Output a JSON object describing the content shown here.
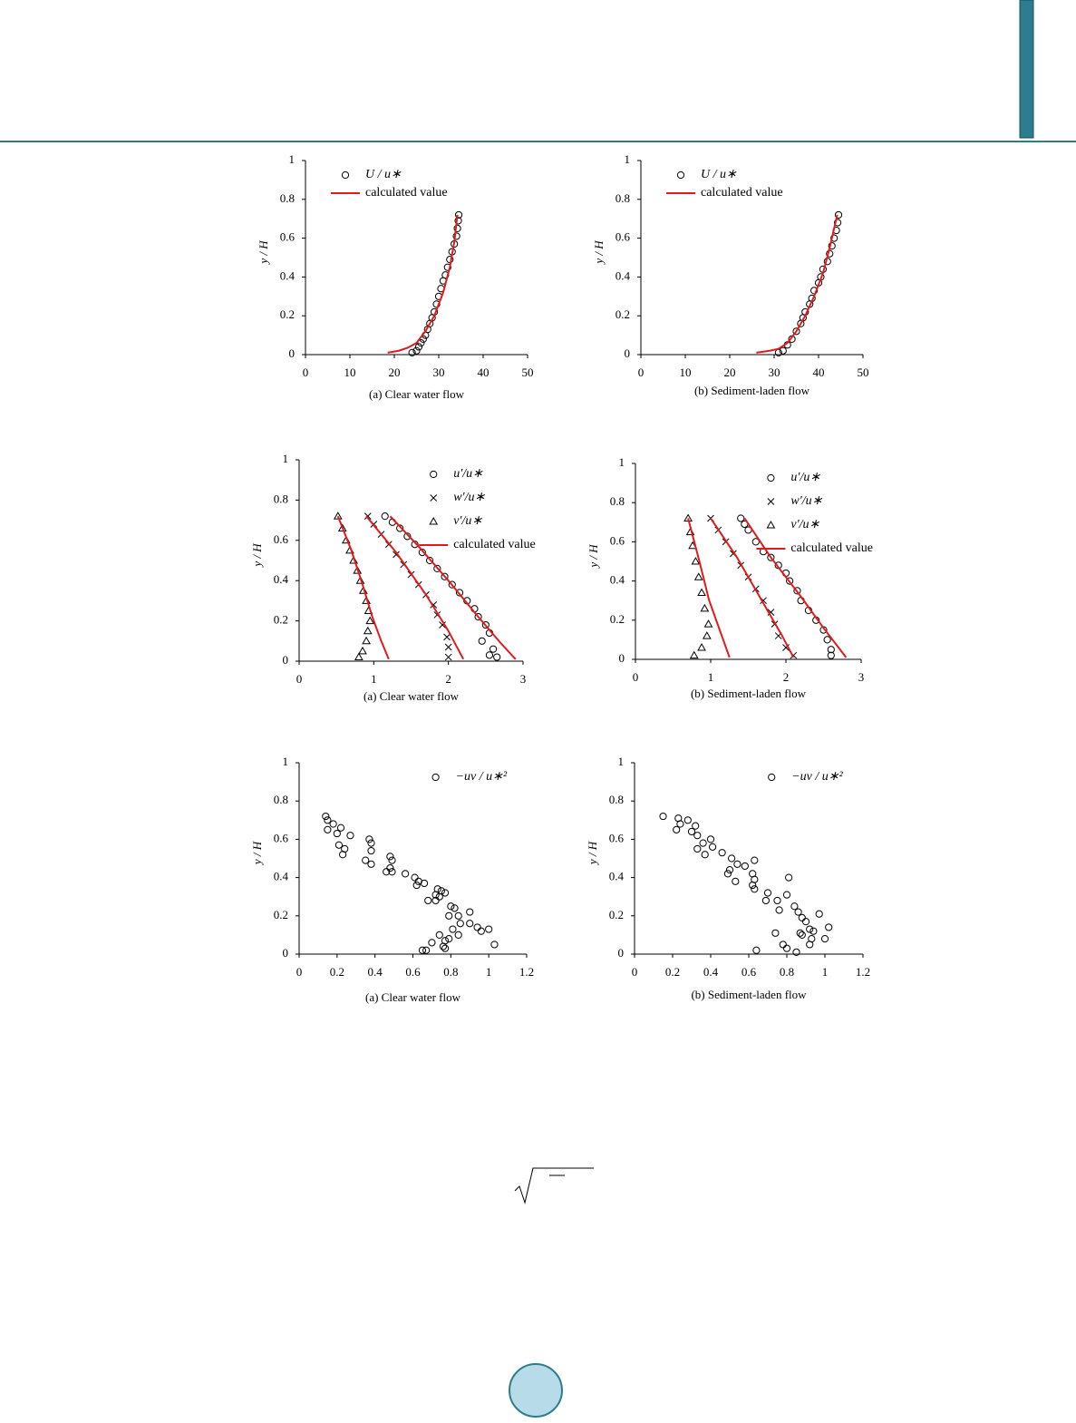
{
  "chart_data": [
    {
      "type": "scatter",
      "ylabel": "y / H",
      "caption": "(a) Clear water flow",
      "legend": "upper left",
      "xlim": [
        0,
        50
      ],
      "xticks": [
        0,
        10,
        20,
        30,
        40,
        50
      ],
      "ylim": [
        0,
        1
      ],
      "yticks": [
        0,
        0.2,
        0.4,
        0.6,
        0.8,
        1
      ],
      "series": [
        {
          "name": "U / u∗",
          "color": "#000000",
          "marker": "circle",
          "x": [
            24,
            25,
            25.5,
            26,
            26.5,
            27,
            27.5,
            28,
            28.5,
            29,
            29.5,
            30,
            30.5,
            31,
            31.5,
            32,
            32.5,
            33,
            33.5,
            34,
            34.2,
            34.4,
            34.5
          ],
          "values": [
            0.01,
            0.02,
            0.04,
            0.06,
            0.08,
            0.1,
            0.13,
            0.16,
            0.19,
            0.22,
            0.26,
            0.3,
            0.34,
            0.38,
            0.41,
            0.45,
            0.49,
            0.53,
            0.57,
            0.61,
            0.65,
            0.69,
            0.72
          ]
        },
        {
          "name": "calculated value",
          "color": "#e31a1c",
          "marker": "line",
          "x": [
            18.5,
            21,
            23,
            25,
            27,
            29,
            31,
            32.5,
            33.5,
            34.2
          ],
          "values": [
            0.01,
            0.02,
            0.035,
            0.06,
            0.12,
            0.2,
            0.32,
            0.45,
            0.58,
            0.72
          ]
        }
      ]
    },
    {
      "type": "scatter",
      "ylabel": "y / H",
      "caption": "(b) Sediment-laden flow",
      "legend": "upper left",
      "xlim": [
        0,
        50
      ],
      "xticks": [
        0,
        10,
        20,
        30,
        40,
        50
      ],
      "ylim": [
        0,
        1
      ],
      "yticks": [
        0,
        0.2,
        0.4,
        0.6,
        0.8,
        1
      ],
      "series": [
        {
          "name": "U / u∗",
          "color": "#000000",
          "marker": "circle",
          "x": [
            31,
            32,
            33,
            34,
            35,
            36,
            36.5,
            37,
            38,
            38.5,
            39,
            40,
            40.5,
            41,
            42,
            42.5,
            43,
            43.5,
            44,
            44.3,
            44.5
          ],
          "values": [
            0.01,
            0.02,
            0.05,
            0.08,
            0.12,
            0.16,
            0.19,
            0.22,
            0.26,
            0.29,
            0.33,
            0.37,
            0.4,
            0.44,
            0.48,
            0.52,
            0.56,
            0.6,
            0.64,
            0.68,
            0.72
          ]
        },
        {
          "name": "calculated value",
          "color": "#e31a1c",
          "marker": "line",
          "x": [
            26,
            29,
            31,
            33,
            35,
            37,
            39,
            41,
            42.5,
            43.5,
            44.2
          ],
          "values": [
            0.01,
            0.02,
            0.03,
            0.06,
            0.12,
            0.2,
            0.3,
            0.42,
            0.55,
            0.65,
            0.72
          ]
        }
      ]
    },
    {
      "type": "scatter",
      "ylabel": "y / H",
      "caption": "(a) Clear water flow",
      "legend": "upper right",
      "xlim": [
        0,
        3
      ],
      "xticks": [
        0,
        1,
        2,
        3
      ],
      "ylim": [
        0,
        1
      ],
      "yticks": [
        0,
        0.2,
        0.4,
        0.6,
        0.8,
        1
      ],
      "series": [
        {
          "name": "u′/u∗",
          "color": "#000000",
          "marker": "circle",
          "x": [
            1.15,
            1.25,
            1.35,
            1.45,
            1.55,
            1.65,
            1.75,
            1.85,
            1.95,
            2.05,
            2.15,
            2.25,
            2.35,
            2.4,
            2.5,
            2.55,
            2.45,
            2.6,
            2.55,
            2.65
          ],
          "values": [
            0.72,
            0.69,
            0.66,
            0.62,
            0.58,
            0.54,
            0.5,
            0.46,
            0.42,
            0.38,
            0.34,
            0.3,
            0.26,
            0.22,
            0.18,
            0.14,
            0.1,
            0.06,
            0.03,
            0.02
          ]
        },
        {
          "name": "w′/u∗",
          "color": "#000000",
          "marker": "x",
          "x": [
            0.92,
            1.0,
            1.1,
            1.2,
            1.3,
            1.4,
            1.5,
            1.6,
            1.7,
            1.8,
            1.85,
            1.92,
            1.98,
            2.0,
            2.0
          ],
          "values": [
            0.72,
            0.68,
            0.63,
            0.58,
            0.53,
            0.48,
            0.43,
            0.38,
            0.33,
            0.28,
            0.23,
            0.18,
            0.12,
            0.07,
            0.02
          ]
        },
        {
          "name": "v′/u∗",
          "color": "#000000",
          "marker": "triangle",
          "x": [
            0.52,
            0.58,
            0.63,
            0.68,
            0.73,
            0.78,
            0.82,
            0.86,
            0.9,
            0.93,
            0.95,
            0.92,
            0.9,
            0.85,
            0.8
          ],
          "values": [
            0.72,
            0.66,
            0.6,
            0.55,
            0.5,
            0.45,
            0.4,
            0.35,
            0.3,
            0.25,
            0.2,
            0.15,
            0.1,
            0.05,
            0.02
          ]
        },
        {
          "name": "calculated value",
          "color": "#e31a1c",
          "marker": "line",
          "x": [
            1.22,
            1.6,
            2.0,
            2.4,
            2.7,
            2.9
          ],
          "values": [
            0.72,
            0.57,
            0.4,
            0.22,
            0.09,
            0.01
          ]
        },
        {
          "color": "#e31a1c",
          "marker": "line",
          "x": [
            0.9,
            1.3,
            1.7,
            2.0,
            2.2
          ],
          "values": [
            0.72,
            0.54,
            0.33,
            0.15,
            0.01
          ]
        },
        {
          "color": "#e31a1c",
          "marker": "line",
          "x": [
            0.52,
            0.7,
            0.85,
            0.98,
            1.1,
            1.2
          ],
          "values": [
            0.72,
            0.55,
            0.38,
            0.22,
            0.1,
            0.01
          ]
        }
      ]
    },
    {
      "type": "scatter",
      "ylabel": "y / H",
      "caption": "(b) Sediment-laden flow",
      "legend": "upper right",
      "xlim": [
        0,
        3
      ],
      "xticks": [
        0,
        1,
        2,
        3
      ],
      "ylim": [
        0,
        1
      ],
      "yticks": [
        0,
        0.2,
        0.4,
        0.6,
        0.8,
        1
      ],
      "series": [
        {
          "name": "u′/u∗",
          "color": "#000000",
          "marker": "circle",
          "x": [
            1.4,
            1.45,
            1.5,
            1.6,
            1.7,
            1.8,
            1.9,
            2.0,
            2.05,
            2.15,
            2.2,
            2.3,
            2.4,
            2.5,
            2.55,
            2.6,
            2.6
          ],
          "values": [
            0.72,
            0.69,
            0.66,
            0.6,
            0.55,
            0.52,
            0.48,
            0.44,
            0.4,
            0.35,
            0.3,
            0.25,
            0.2,
            0.15,
            0.1,
            0.05,
            0.02
          ]
        },
        {
          "name": "w′/u∗",
          "color": "#000000",
          "marker": "x",
          "x": [
            1.0,
            1.1,
            1.2,
            1.3,
            1.4,
            1.5,
            1.6,
            1.7,
            1.8,
            1.85,
            1.9,
            2.0,
            2.1
          ],
          "values": [
            0.72,
            0.66,
            0.6,
            0.54,
            0.48,
            0.42,
            0.36,
            0.3,
            0.24,
            0.18,
            0.12,
            0.06,
            0.02
          ]
        },
        {
          "name": "v′/u∗",
          "color": "#000000",
          "marker": "triangle",
          "x": [
            0.7,
            0.73,
            0.76,
            0.8,
            0.84,
            0.88,
            0.92,
            0.97,
            0.95,
            0.88,
            0.78
          ],
          "values": [
            0.72,
            0.65,
            0.58,
            0.5,
            0.42,
            0.34,
            0.26,
            0.18,
            0.12,
            0.06,
            0.02
          ]
        },
        {
          "name": "calculated value",
          "color": "#e31a1c",
          "marker": "line",
          "x": [
            1.45,
            1.8,
            2.2,
            2.5,
            2.8
          ],
          "values": [
            0.72,
            0.52,
            0.32,
            0.16,
            0.01
          ]
        },
        {
          "color": "#e31a1c",
          "marker": "line",
          "x": [
            1.0,
            1.35,
            1.65,
            1.95,
            2.1
          ],
          "values": [
            0.72,
            0.52,
            0.32,
            0.12,
            0.01
          ]
        },
        {
          "color": "#e31a1c",
          "marker": "line",
          "x": [
            0.7,
            0.85,
            0.98,
            1.12,
            1.25
          ],
          "values": [
            0.72,
            0.5,
            0.3,
            0.15,
            0.01
          ]
        }
      ]
    },
    {
      "type": "scatter",
      "ylabel": "y / H",
      "caption": "(a) Clear water flow",
      "legend": "upper right",
      "xlim": [
        0,
        1.2
      ],
      "xticks": [
        0,
        0.2,
        0.4,
        0.6,
        0.8,
        1,
        1.2
      ],
      "ylim": [
        0,
        1
      ],
      "yticks": [
        0,
        0.2,
        0.4,
        0.6,
        0.8,
        1
      ],
      "series": [
        {
          "name": "−uv / u∗²",
          "color": "#000000",
          "marker": "circle",
          "x": [
            0.14,
            0.15,
            0.18,
            0.22,
            0.27,
            0.2,
            0.15,
            0.21,
            0.24,
            0.23,
            0.37,
            0.38,
            0.38,
            0.35,
            0.38,
            0.48,
            0.49,
            0.48,
            0.46,
            0.49,
            0.56,
            0.61,
            0.63,
            0.66,
            0.62,
            0.73,
            0.75,
            0.72,
            0.74,
            0.72,
            0.68,
            0.77,
            0.8,
            0.82,
            0.79,
            0.84,
            0.9,
            0.85,
            0.9,
            0.94,
            0.81,
            0.84,
            0.96,
            1.0,
            0.74,
            0.77,
            0.79,
            0.7,
            0.76,
            0.77,
            0.67,
            0.65,
            1.03
          ],
          "values": [
            0.72,
            0.7,
            0.68,
            0.66,
            0.62,
            0.63,
            0.65,
            0.57,
            0.55,
            0.52,
            0.6,
            0.58,
            0.54,
            0.49,
            0.47,
            0.51,
            0.49,
            0.45,
            0.43,
            0.43,
            0.42,
            0.4,
            0.38,
            0.37,
            0.36,
            0.34,
            0.33,
            0.31,
            0.3,
            0.28,
            0.28,
            0.32,
            0.25,
            0.24,
            0.2,
            0.2,
            0.22,
            0.16,
            0.16,
            0.14,
            0.13,
            0.1,
            0.12,
            0.13,
            0.1,
            0.07,
            0.08,
            0.06,
            0.04,
            0.03,
            0.02,
            0.02,
            0.05
          ]
        }
      ]
    },
    {
      "type": "scatter",
      "ylabel": "y / H",
      "caption": "(b) Sediment-laden flow",
      "legend": "upper right",
      "xlim": [
        0,
        1.2
      ],
      "xticks": [
        0,
        0.2,
        0.4,
        0.6,
        0.8,
        1,
        1.2
      ],
      "ylim": [
        0,
        1
      ],
      "yticks": [
        0,
        0.2,
        0.4,
        0.6,
        0.8,
        1
      ],
      "series": [
        {
          "name": "−uv / u∗²",
          "color": "#000000",
          "marker": "circle",
          "x": [
            0.15,
            0.23,
            0.24,
            0.28,
            0.32,
            0.22,
            0.3,
            0.33,
            0.36,
            0.4,
            0.41,
            0.33,
            0.37,
            0.46,
            0.51,
            0.54,
            0.58,
            0.5,
            0.49,
            0.53,
            0.63,
            0.62,
            0.63,
            0.62,
            0.63,
            0.7,
            0.69,
            0.75,
            0.76,
            0.81,
            0.8,
            0.84,
            0.86,
            0.88,
            0.9,
            0.97,
            0.92,
            0.94,
            0.87,
            1.02,
            0.88,
            0.93,
            1.0,
            0.74,
            0.78,
            0.8,
            0.85,
            0.92,
            0.64
          ],
          "values": [
            0.72,
            0.71,
            0.68,
            0.7,
            0.67,
            0.65,
            0.64,
            0.62,
            0.58,
            0.6,
            0.56,
            0.55,
            0.52,
            0.53,
            0.5,
            0.47,
            0.46,
            0.44,
            0.42,
            0.38,
            0.49,
            0.42,
            0.39,
            0.36,
            0.34,
            0.32,
            0.28,
            0.28,
            0.23,
            0.4,
            0.31,
            0.25,
            0.22,
            0.19,
            0.17,
            0.21,
            0.13,
            0.12,
            0.11,
            0.14,
            0.1,
            0.08,
            0.08,
            0.11,
            0.05,
            0.03,
            0.01,
            0.05,
            0.02
          ]
        }
      ]
    }
  ]
}
